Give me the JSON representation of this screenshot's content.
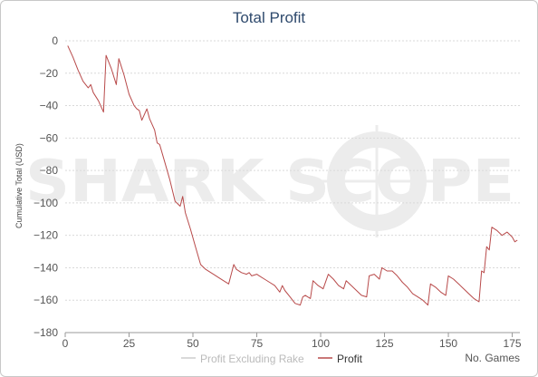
{
  "chart_data": {
    "type": "line",
    "title": "Total Profit",
    "xlabel": "No. Games",
    "ylabel": "Cumulative Total (USD)",
    "xlim": [
      0,
      178
    ],
    "ylim": [
      -180,
      0
    ],
    "x_ticks": [
      0,
      25,
      50,
      75,
      100,
      125,
      150,
      175
    ],
    "y_ticks": [
      0,
      -20,
      -40,
      -60,
      -80,
      -100,
      -120,
      -140,
      -160,
      -180
    ],
    "x_tick_labels": [
      "0",
      "25",
      "50",
      "75",
      "100",
      "125",
      "150",
      "175"
    ],
    "y_tick_labels": [
      "0",
      "−20",
      "−40",
      "−60",
      "−80",
      "−100",
      "−120",
      "−140",
      "−160",
      "−180"
    ],
    "grid": true,
    "legend_position": "bottom-center",
    "watermark": "SHARK SCOPE",
    "series": [
      {
        "name": "Profit Excluding Rake",
        "color": "#cccccc",
        "visible": false,
        "x": [],
        "y": []
      },
      {
        "name": "Profit",
        "color": "#b84a4a",
        "visible": true,
        "x": [
          1,
          3,
          5,
          7,
          9,
          10,
          11,
          13,
          15,
          16,
          18,
          20,
          21,
          23,
          25,
          27,
          28,
          29,
          30,
          32,
          33,
          35,
          36,
          37,
          39,
          41,
          43,
          45,
          46,
          47,
          49,
          51,
          53,
          55,
          57,
          58,
          60,
          62,
          64,
          66,
          67,
          69,
          71,
          72,
          73,
          75,
          76,
          78,
          80,
          82,
          84,
          85,
          86,
          88,
          90,
          92,
          93,
          94,
          96,
          97,
          99,
          101,
          103,
          105,
          107,
          109,
          110,
          112,
          114,
          116,
          118,
          119,
          121,
          123,
          124,
          126,
          128,
          130,
          132,
          134,
          136,
          138,
          140,
          142,
          143,
          145,
          147,
          149,
          150,
          152,
          154,
          156,
          158,
          160,
          162,
          163,
          164,
          165,
          166,
          167,
          169,
          171,
          173,
          175,
          176,
          177
        ],
        "y": [
          -3,
          -10,
          -18,
          -25,
          -29,
          -27,
          -32,
          -37,
          -44,
          -9,
          -17,
          -27,
          -11,
          -21,
          -33,
          -40,
          -42,
          -43,
          -49,
          -42,
          -48,
          -55,
          -63,
          -64,
          -75,
          -86,
          -99,
          -102,
          -96,
          -106,
          -116,
          -127,
          -138,
          -141,
          -143,
          -144,
          -146,
          -148,
          -150,
          -138,
          -141,
          -143,
          -144,
          -143,
          -145,
          -144,
          -145,
          -147,
          -149,
          -151,
          -155,
          -151,
          -154,
          -158,
          -162,
          -163,
          -158,
          -157,
          -159,
          -148,
          -151,
          -153,
          -144,
          -147,
          -151,
          -153,
          -148,
          -151,
          -154,
          -157,
          -158,
          -145,
          -144,
          -147,
          -140,
          -142,
          -142,
          -145,
          -149,
          -152,
          -156,
          -158,
          -160,
          -163,
          -150,
          -152,
          -155,
          -157,
          -145,
          -147,
          -150,
          -153,
          -156,
          -159,
          -161,
          -142,
          -143,
          -127,
          -129,
          -115,
          -117,
          -120,
          -118,
          -121,
          -124,
          -123
        ]
      }
    ]
  }
}
